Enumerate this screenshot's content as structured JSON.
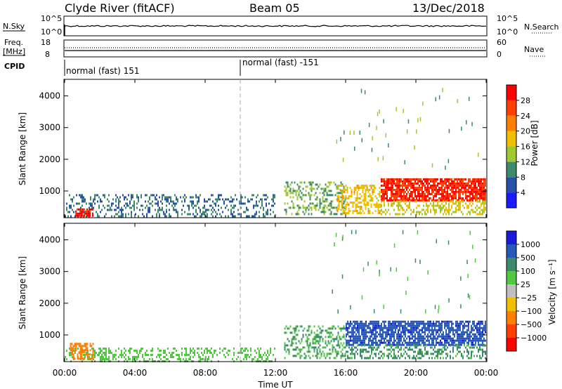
{
  "header": {
    "station": "Clyde River (fitACF)",
    "beam": "Beam 05",
    "date": "13/Dec/2018"
  },
  "status_panels": {
    "nsky_label": "N.Sky",
    "nsearch_label": "N.Search",
    "freq_label_1": "Freq.",
    "freq_label_2": "[MHz]",
    "nave_label": "Nave",
    "cpid_label": "CPID",
    "left_ticks_top": [
      "10^5",
      "10^0"
    ],
    "right_ticks_top": [
      "10^5",
      "10^0"
    ],
    "left_ticks_freq": [
      "18",
      "8"
    ],
    "right_ticks_nave": [
      "60",
      "0"
    ],
    "cpid_segments": [
      {
        "label": "normal (fast) 151",
        "start_hour": 0
      },
      {
        "label": "normal (fast) -151",
        "start_hour": 10
      }
    ]
  },
  "x_axis": {
    "label": "Time UT",
    "ticks": [
      "00:00",
      "04:00",
      "08:00",
      "12:00",
      "16:00",
      "20:00",
      "00:00"
    ],
    "tick_hours": [
      0,
      4,
      8,
      12,
      16,
      20,
      24
    ]
  },
  "chart_data": [
    {
      "type": "heatmap",
      "ylabel": "Slant Range [km]",
      "y_ticks": [
        "1000",
        "2000",
        "3000",
        "4000"
      ],
      "y_tick_values": [
        1000,
        2000,
        3000,
        4000
      ],
      "ylim": [
        180,
        4500
      ],
      "xlim": [
        0,
        24
      ],
      "colorbar": {
        "label": "Power [dB]",
        "ticks": [
          "4",
          "8",
          "12",
          "16",
          "20",
          "24",
          "28"
        ],
        "tick_values": [
          4,
          8,
          12,
          16,
          20,
          24,
          28
        ],
        "range": [
          0,
          32
        ],
        "colors": [
          "#1a1aff",
          "#2850a8",
          "#3c8a6a",
          "#a0c830",
          "#f0c000",
          "#ff8000",
          "#ff4000",
          "#ff0000"
        ]
      },
      "echo_regions": [
        {
          "x_start": 0,
          "x_end": 12,
          "range_start": 200,
          "range_end": 900,
          "level": 8,
          "density": 0.3
        },
        {
          "x_start": 0.6,
          "x_end": 1.6,
          "range_start": 250,
          "range_end": 450,
          "level": 28,
          "density": 0.8
        },
        {
          "x_start": 12.5,
          "x_end": 16,
          "range_start": 300,
          "range_end": 1300,
          "level": 12,
          "density": 0.35
        },
        {
          "x_start": 15.5,
          "x_end": 18,
          "range_start": 300,
          "range_end": 1200,
          "level": 18,
          "density": 0.45
        },
        {
          "x_start": 18,
          "x_end": 24,
          "range_start": 700,
          "range_end": 1400,
          "level": 28,
          "density": 0.8
        },
        {
          "x_start": 18,
          "x_end": 24,
          "range_start": 300,
          "range_end": 700,
          "level": 16,
          "density": 0.4
        }
      ]
    },
    {
      "type": "heatmap",
      "ylabel": "Slant Range [km]",
      "y_ticks": [
        "1000",
        "2000",
        "3000",
        "4000"
      ],
      "y_tick_values": [
        1000,
        2000,
        3000,
        4000
      ],
      "ylim": [
        180,
        4500
      ],
      "xlim": [
        0,
        24
      ],
      "colorbar": {
        "label": "Velocity [m s⁻¹]",
        "ticks": [
          "1000",
          "500",
          "100",
          "25",
          "−25",
          "−100",
          "−500",
          "−1000"
        ],
        "tick_values": [
          1000,
          500,
          100,
          25,
          -25,
          -100,
          -500,
          -1000
        ],
        "colors": [
          "#1a1ad8",
          "#2858b8",
          "#3c8a6a",
          "#50c840",
          "#c0c0c0",
          "#f0c000",
          "#ff8000",
          "#ff4000",
          "#ff0000"
        ]
      },
      "echo_regions": [
        {
          "x_start": 0,
          "x_end": 12,
          "range_start": 200,
          "range_end": 600,
          "level": 50,
          "density": 0.35
        },
        {
          "x_start": 0.3,
          "x_end": 1.6,
          "range_start": 250,
          "range_end": 750,
          "level": -300,
          "density": 0.6
        },
        {
          "x_start": 12.5,
          "x_end": 16,
          "range_start": 300,
          "range_end": 1300,
          "level": 100,
          "density": 0.35
        },
        {
          "x_start": 16,
          "x_end": 24,
          "range_start": 700,
          "range_end": 1450,
          "level": 800,
          "density": 0.75
        },
        {
          "x_start": 16,
          "x_end": 24,
          "range_start": 250,
          "range_end": 700,
          "level": 120,
          "density": 0.4
        }
      ]
    }
  ]
}
